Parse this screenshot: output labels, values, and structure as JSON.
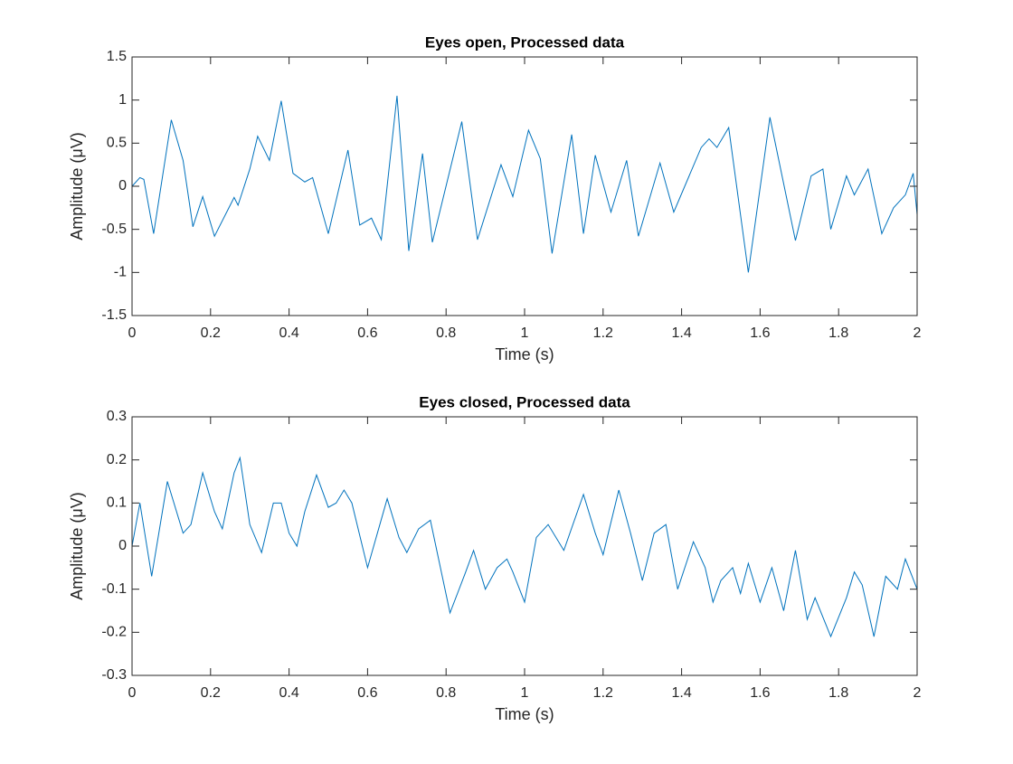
{
  "chart_data": [
    {
      "type": "line",
      "title": "Eyes open, Processed data",
      "xlabel": "Time (s)",
      "ylabel": "Amplitude (μV)",
      "xlim": [
        0,
        2
      ],
      "xticks": [
        0,
        0.2,
        0.4,
        0.6,
        0.8,
        1,
        1.2,
        1.4,
        1.6,
        1.8,
        2
      ],
      "ylim": [
        -1.5,
        1.5
      ],
      "yticks": [
        -1.5,
        -1,
        -0.5,
        0,
        0.5,
        1,
        1.5
      ],
      "x": [
        0,
        0.02,
        0.03,
        0.055,
        0.1,
        0.13,
        0.155,
        0.18,
        0.21,
        0.26,
        0.27,
        0.3,
        0.32,
        0.35,
        0.38,
        0.41,
        0.44,
        0.46,
        0.5,
        0.55,
        0.58,
        0.61,
        0.635,
        0.675,
        0.705,
        0.74,
        0.765,
        0.84,
        0.88,
        0.94,
        0.97,
        1.01,
        1.04,
        1.07,
        1.12,
        1.15,
        1.18,
        1.22,
        1.26,
        1.29,
        1.345,
        1.38,
        1.45,
        1.47,
        1.49,
        1.52,
        1.57,
        1.625,
        1.69,
        1.73,
        1.76,
        1.78,
        1.82,
        1.84,
        1.875,
        1.91,
        1.94,
        1.97,
        1.99,
        2
      ],
      "series": [
        {
          "color": "#0072bd",
          "values": [
            0,
            0.1,
            0.08,
            -0.55,
            0.77,
            0.3,
            -0.47,
            -0.12,
            -0.58,
            -0.13,
            -0.22,
            0.2,
            0.58,
            0.3,
            0.99,
            0.15,
            0.05,
            0.1,
            -0.55,
            0.42,
            -0.45,
            -0.37,
            -0.62,
            1.05,
            -0.75,
            0.38,
            -0.65,
            0.75,
            -0.62,
            0.25,
            -0.12,
            0.65,
            0.32,
            -0.78,
            0.6,
            -0.55,
            0.36,
            -0.3,
            0.3,
            -0.58,
            0.27,
            -0.3,
            0.45,
            0.55,
            0.45,
            0.68,
            -1.0,
            0.8,
            -0.63,
            0.12,
            0.2,
            -0.5,
            0.12,
            -0.1,
            0.2,
            -0.55,
            -0.25,
            -0.1,
            0.15,
            -0.33
          ]
        }
      ]
    },
    {
      "type": "line",
      "title": "Eyes closed, Processed data",
      "xlabel": "Time (s)",
      "ylabel": "Amplitude (μV)",
      "xlim": [
        0,
        2
      ],
      "xticks": [
        0,
        0.2,
        0.4,
        0.6,
        0.8,
        1,
        1.2,
        1.4,
        1.6,
        1.8,
        2
      ],
      "ylim": [
        -0.3,
        0.3
      ],
      "yticks": [
        -0.3,
        -0.2,
        -0.1,
        0,
        0.1,
        0.2,
        0.3
      ],
      "x": [
        0,
        0.02,
        0.05,
        0.09,
        0.13,
        0.15,
        0.18,
        0.21,
        0.23,
        0.26,
        0.275,
        0.3,
        0.33,
        0.36,
        0.38,
        0.4,
        0.42,
        0.44,
        0.47,
        0.5,
        0.52,
        0.54,
        0.56,
        0.6,
        0.65,
        0.68,
        0.7,
        0.73,
        0.76,
        0.81,
        0.85,
        0.87,
        0.9,
        0.93,
        0.955,
        0.97,
        1.0,
        1.03,
        1.06,
        1.1,
        1.15,
        1.18,
        1.2,
        1.24,
        1.27,
        1.3,
        1.33,
        1.36,
        1.39,
        1.43,
        1.46,
        1.48,
        1.5,
        1.53,
        1.55,
        1.57,
        1.6,
        1.63,
        1.66,
        1.69,
        1.72,
        1.74,
        1.78,
        1.82,
        1.84,
        1.86,
        1.89,
        1.92,
        1.95,
        1.97,
        2
      ],
      "series": [
        {
          "color": "#0072bd",
          "values": [
            0,
            0.1,
            -0.07,
            0.15,
            0.03,
            0.05,
            0.17,
            0.08,
            0.04,
            0.17,
            0.205,
            0.05,
            -0.015,
            0.1,
            0.1,
            0.03,
            0,
            0.08,
            0.165,
            0.09,
            0.1,
            0.13,
            0.1,
            -0.05,
            0.11,
            0.02,
            -0.015,
            0.04,
            0.06,
            -0.155,
            -0.06,
            -0.01,
            -0.1,
            -0.05,
            -0.03,
            -0.06,
            -0.13,
            0.02,
            0.05,
            -0.01,
            0.12,
            0.03,
            -0.02,
            0.13,
            0.03,
            -0.08,
            0.03,
            0.05,
            -0.1,
            0.01,
            -0.05,
            -0.13,
            -0.08,
            -0.05,
            -0.11,
            -0.04,
            -0.13,
            -0.05,
            -0.15,
            -0.01,
            -0.17,
            -0.12,
            -0.21,
            -0.12,
            -0.06,
            -0.09,
            -0.21,
            -0.07,
            -0.1,
            -0.03,
            -0.1
          ]
        }
      ]
    }
  ]
}
